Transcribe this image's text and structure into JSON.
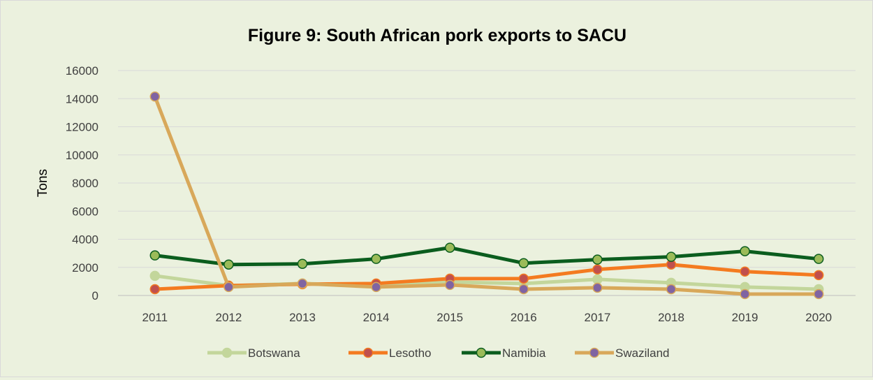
{
  "chart_data": {
    "type": "line",
    "title": "Figure 9: South African pork exports to SACU",
    "xlabel": "",
    "ylabel": "Tons",
    "categories": [
      "2011",
      "2012",
      "2013",
      "2014",
      "2015",
      "2016",
      "2017",
      "2018",
      "2019",
      "2020"
    ],
    "ylim": [
      0,
      16000
    ],
    "yticks": [
      "0",
      "2000",
      "4000",
      "6000",
      "8000",
      "10000",
      "12000",
      "14000",
      "16000"
    ],
    "grid": true,
    "legend_position": "bottom",
    "series": [
      {
        "name": "Botswana",
        "color": "#c3d69b",
        "values": [
          1400,
          700,
          850,
          700,
          950,
          850,
          1150,
          900,
          600,
          450
        ]
      },
      {
        "name": "Lesotho",
        "color": "#f47b20",
        "marker_color": "#c0504d",
        "values": [
          450,
          700,
          800,
          850,
          1200,
          1200,
          1850,
          2200,
          1700,
          1450
        ]
      },
      {
        "name": "Namibia",
        "color": "#0b5d1e",
        "marker_color": "#9bbb59",
        "values": [
          2850,
          2200,
          2250,
          2600,
          3400,
          2300,
          2550,
          2750,
          3150,
          2600
        ]
      },
      {
        "name": "Swaziland",
        "color": "#d8a85a",
        "marker_color": "#8064a2",
        "values": [
          14150,
          600,
          850,
          600,
          750,
          450,
          550,
          450,
          100,
          100
        ]
      }
    ]
  }
}
